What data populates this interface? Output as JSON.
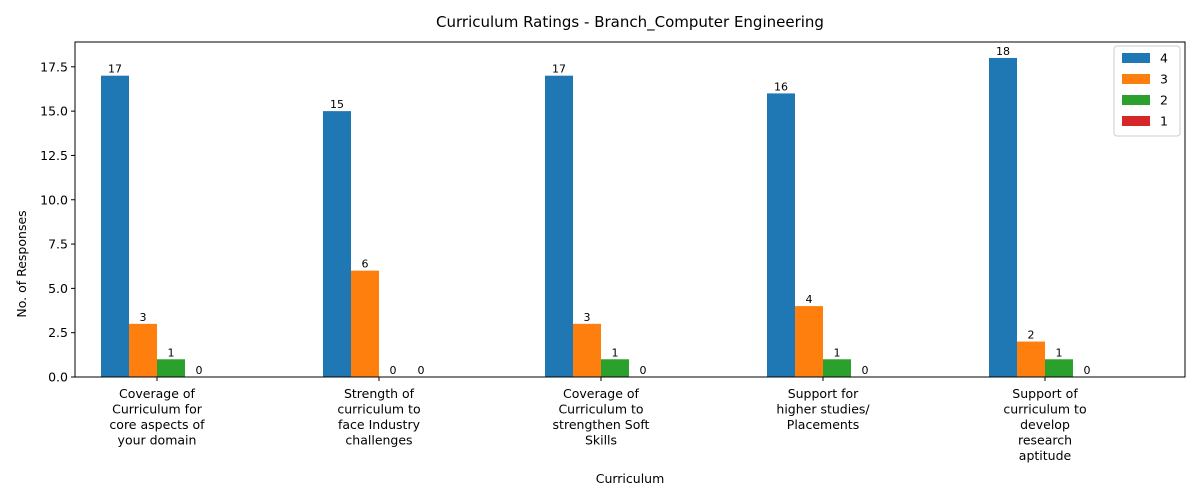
{
  "chart_data": {
    "type": "bar",
    "title": "Curriculum Ratings - Branch_Computer Engineering",
    "xlabel": "Curriculum",
    "ylabel": "No. of Responses",
    "ylim": [
      0,
      18.9
    ],
    "yticks": [
      "0.0",
      "2.5",
      "5.0",
      "7.5",
      "10.0",
      "12.5",
      "15.0",
      "17.5"
    ],
    "ytick_values": [
      0,
      2.5,
      5,
      7.5,
      10,
      12.5,
      15,
      17.5
    ],
    "grid": false,
    "legend_position": "top-right",
    "categories": [
      [
        "Coverage of",
        "Curriculum for",
        "core aspects of",
        "your domain"
      ],
      [
        "Strength of",
        "curriculum to",
        "face Industry",
        "challenges"
      ],
      [
        "Coverage of",
        "Curriculum to",
        "strengthen Soft",
        "Skills"
      ],
      [
        "Support for",
        "higher studies/",
        "Placements"
      ],
      [
        "Support of",
        "curriculum to",
        "develop",
        "research",
        "aptitude"
      ]
    ],
    "series": [
      {
        "name": "4",
        "color": "#1f77b4",
        "values": [
          17,
          15,
          17,
          16,
          18
        ]
      },
      {
        "name": "3",
        "color": "#ff7f0e",
        "values": [
          3,
          6,
          3,
          4,
          2
        ]
      },
      {
        "name": "2",
        "color": "#2ca02c",
        "values": [
          1,
          0,
          1,
          1,
          1
        ]
      },
      {
        "name": "1",
        "color": "#d62728",
        "values": [
          0,
          0,
          0,
          0,
          0
        ]
      }
    ]
  }
}
